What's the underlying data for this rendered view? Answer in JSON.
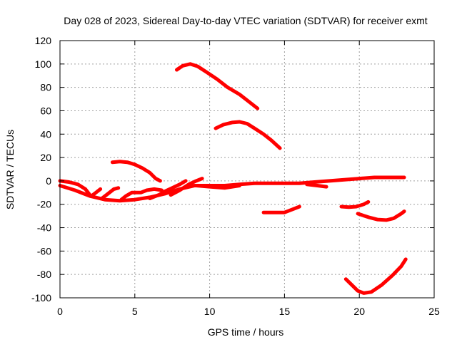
{
  "chart_data": {
    "type": "line",
    "title": "Day 028 of 2023, Sidereal Day-to-day VTEC variation (SDTVAR) for receiver exmt",
    "xlabel": "GPS time / hours",
    "ylabel": "SDTVAR / TECUs",
    "xlim": [
      0,
      25
    ],
    "ylim": [
      -100,
      120
    ],
    "xticks": [
      0,
      5,
      10,
      15,
      20,
      25
    ],
    "yticks": [
      -100,
      -80,
      -60,
      -40,
      -20,
      0,
      20,
      40,
      60,
      80,
      100,
      120
    ],
    "grid": true,
    "legend": "none",
    "series_color": "#ff0000",
    "series": [
      {
        "points": [
          [
            7.8,
            95
          ],
          [
            8.2,
            98.5
          ],
          [
            8.7,
            100
          ],
          [
            9.2,
            98
          ],
          [
            9.8,
            93
          ],
          [
            10.5,
            87
          ],
          [
            11.2,
            80
          ],
          [
            12.0,
            74
          ],
          [
            12.6,
            68
          ],
          [
            13.2,
            62
          ]
        ]
      },
      {
        "points": [
          [
            10.4,
            45
          ],
          [
            10.9,
            48
          ],
          [
            11.5,
            50
          ],
          [
            12.0,
            50.5
          ],
          [
            12.5,
            49
          ],
          [
            13.0,
            45
          ],
          [
            13.6,
            40
          ],
          [
            14.1,
            35
          ],
          [
            14.7,
            28
          ]
        ]
      },
      {
        "points": [
          [
            3.5,
            16
          ],
          [
            4.0,
            16.5
          ],
          [
            4.5,
            16
          ],
          [
            5.0,
            14
          ],
          [
            5.5,
            11
          ],
          [
            6.0,
            7
          ],
          [
            6.4,
            2
          ],
          [
            6.7,
            0
          ]
        ]
      },
      {
        "points": [
          [
            0,
            -4
          ],
          [
            1,
            -8
          ],
          [
            2,
            -13
          ],
          [
            3,
            -16
          ],
          [
            4,
            -17
          ],
          [
            5,
            -16
          ],
          [
            6,
            -14
          ],
          [
            7,
            -11
          ],
          [
            8,
            -7
          ],
          [
            9,
            -4
          ],
          [
            10,
            -4
          ],
          [
            11,
            -4
          ],
          [
            12,
            -3
          ],
          [
            13,
            -2
          ],
          [
            14,
            -2
          ],
          [
            15,
            -2
          ],
          [
            16,
            -2
          ],
          [
            17,
            -1
          ],
          [
            18,
            0
          ],
          [
            19,
            1
          ],
          [
            20,
            2
          ],
          [
            21,
            3
          ],
          [
            22,
            3
          ],
          [
            23,
            3
          ]
        ]
      },
      {
        "points": [
          [
            0,
            0
          ],
          [
            0.6,
            -1
          ],
          [
            1.2,
            -3
          ],
          [
            1.7,
            -7
          ],
          [
            2.0,
            -12
          ]
        ]
      },
      {
        "points": [
          [
            2.1,
            -13
          ],
          [
            2.4,
            -10
          ],
          [
            2.7,
            -7
          ]
        ]
      },
      {
        "points": [
          [
            2.8,
            -15
          ],
          [
            3.2,
            -11
          ],
          [
            3.6,
            -7
          ],
          [
            3.9,
            -6
          ]
        ]
      },
      {
        "points": [
          [
            4.1,
            -16
          ],
          [
            4.4,
            -13
          ],
          [
            4.8,
            -10
          ],
          [
            5.4,
            -10
          ],
          [
            5.8,
            -8
          ],
          [
            6.3,
            -7
          ],
          [
            6.8,
            -8
          ]
        ]
      },
      {
        "points": [
          [
            6.0,
            -15
          ],
          [
            6.6,
            -12
          ],
          [
            7.0,
            -9
          ],
          [
            7.5,
            -6
          ],
          [
            8.0,
            -3
          ],
          [
            8.4,
            0
          ]
        ]
      },
      {
        "points": [
          [
            7.4,
            -12
          ],
          [
            8.0,
            -8
          ],
          [
            8.6,
            -3
          ],
          [
            9.1,
            0
          ],
          [
            9.5,
            2
          ]
        ]
      },
      {
        "points": [
          [
            9.1,
            -4
          ],
          [
            10,
            -5
          ],
          [
            11,
            -6
          ],
          [
            12,
            -4
          ]
        ]
      },
      {
        "points": [
          [
            16.5,
            -3
          ],
          [
            17.2,
            -4
          ],
          [
            17.8,
            -5
          ]
        ]
      },
      {
        "points": [
          [
            13.6,
            -27
          ],
          [
            14.2,
            -27
          ],
          [
            15.0,
            -27
          ],
          [
            15.6,
            -24
          ],
          [
            16.0,
            -22
          ]
        ]
      },
      {
        "points": [
          [
            18.8,
            -22
          ],
          [
            19.3,
            -22.5
          ],
          [
            19.8,
            -22
          ],
          [
            20.3,
            -20
          ],
          [
            20.6,
            -18
          ]
        ]
      },
      {
        "points": [
          [
            19.9,
            -28
          ],
          [
            20.6,
            -31
          ],
          [
            21.2,
            -33
          ],
          [
            21.8,
            -33.5
          ],
          [
            22.3,
            -32
          ],
          [
            22.8,
            -28
          ],
          [
            23.0,
            -26
          ]
        ]
      },
      {
        "points": [
          [
            19.1,
            -84
          ],
          [
            19.5,
            -89
          ],
          [
            19.9,
            -94
          ],
          [
            20.3,
            -96
          ],
          [
            20.8,
            -95
          ],
          [
            21.5,
            -89
          ],
          [
            22.2,
            -81
          ],
          [
            22.8,
            -73
          ],
          [
            23.1,
            -67
          ]
        ]
      }
    ]
  }
}
